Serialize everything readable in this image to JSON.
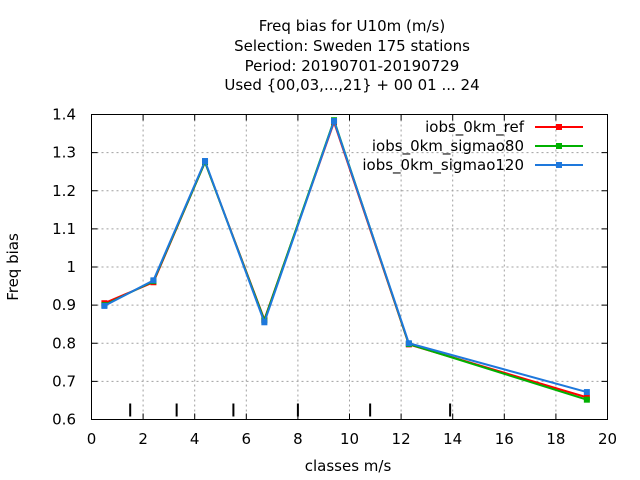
{
  "chart_data": {
    "type": "line",
    "title_lines": [
      "Freq bias  for U10m (m/s)",
      "Selection: Sweden    175 stations",
      "Period: 20190701-20190729",
      "Used {00,03,...,21} + 00 01 ... 24"
    ],
    "xlabel": "classes m/s",
    "ylabel": "Freq bias",
    "xlim": [
      0,
      20
    ],
    "ylim": [
      0.6,
      1.4
    ],
    "x_ticks": [
      0,
      2,
      4,
      6,
      8,
      10,
      12,
      14,
      16,
      18,
      20
    ],
    "y_ticks": [
      0.6,
      0.7,
      0.8,
      0.9,
      1,
      1.1,
      1.2,
      1.3,
      1.4
    ],
    "x_tick_labels": [
      "0",
      "2",
      "4",
      "6",
      "8",
      "10",
      "12",
      "14",
      "16",
      "18",
      "20"
    ],
    "y_tick_labels": [
      "0.6",
      "0.7",
      "0.8",
      "0.9",
      "1",
      "1.1",
      "1.2",
      "1.3",
      "1.4"
    ],
    "grid": true,
    "legend_position": "top-right",
    "class_boundaries": [
      1.5,
      3.3,
      5.5,
      8.0,
      10.8,
      13.9
    ],
    "x": [
      0.5,
      2.4,
      4.4,
      6.7,
      9.4,
      12.3,
      19.2
    ],
    "series": [
      {
        "name": "iobs_0km_ref",
        "color": "#ff0000",
        "values": [
          0.905,
          0.96,
          1.275,
          0.862,
          1.38,
          0.797,
          0.658
        ]
      },
      {
        "name": "iobs_0km_sigmao80",
        "color": "#00b000",
        "values": [
          0.9,
          0.963,
          1.275,
          0.86,
          1.385,
          0.798,
          0.652
        ]
      },
      {
        "name": "iobs_0km_sigmao120",
        "color": "#1e78dc",
        "values": [
          0.898,
          0.965,
          1.278,
          0.855,
          1.383,
          0.8,
          0.672
        ]
      }
    ]
  }
}
